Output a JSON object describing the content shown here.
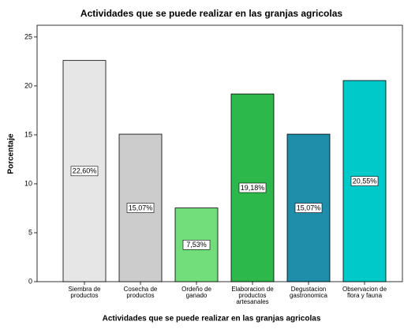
{
  "chart_data": {
    "type": "bar",
    "title": "Actividades que se puede realizar en las granjas agricolas",
    "x_label": "Actividades que se puede realizar en las granjas agricolas",
    "y_label": "Porcentaje",
    "categories": [
      "Siembra de\nproductos",
      "Cosecha de\nproductos",
      "Ordeño de\nganado",
      "Elaboracion de\nproductos\nartesanales",
      "Degustacion\ngastronomica",
      "Observacion de\nflora y fauna"
    ],
    "values": [
      22.6,
      15.07,
      7.53,
      19.18,
      15.07,
      20.55
    ],
    "value_labels": [
      "22,60%",
      "15,07%",
      "7,53%",
      "19,18%",
      "15,07%",
      "20,55%"
    ],
    "colors": [
      "#e6e6e6",
      "#cccccc",
      "#72dd7b",
      "#2db84b",
      "#1f8eab",
      "#00c9c9"
    ],
    "ylim": [
      0,
      26.2
    ],
    "yticks": [
      0,
      5,
      10,
      15,
      20,
      25
    ],
    "grid": false
  }
}
